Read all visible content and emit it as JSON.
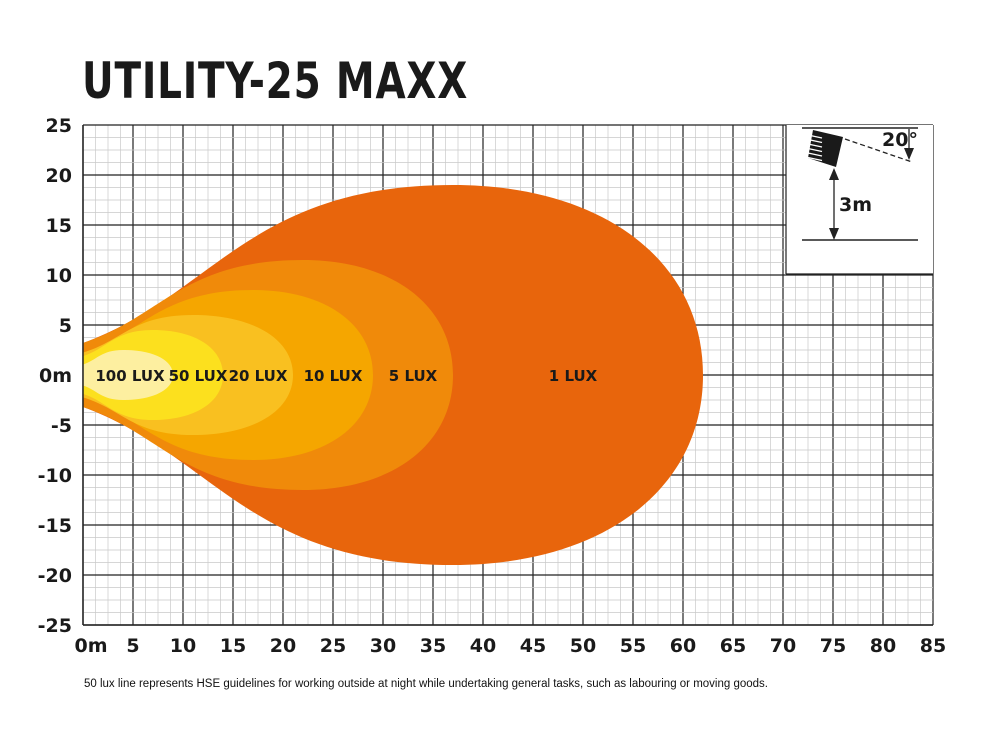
{
  "title": "UTILITY-25 MAXX",
  "footnote": "50 lux line represents HSE guidelines for working outside at night while undertaking general tasks, such as labouring or moving goods.",
  "chart_data": {
    "type": "area",
    "title": "UTILITY-25 MAXX",
    "xlim": [
      0,
      85
    ],
    "ylim": [
      -25,
      25
    ],
    "x_ticks": [
      "0m",
      "5",
      "10",
      "15",
      "20",
      "25",
      "30",
      "35",
      "40",
      "45",
      "50",
      "55",
      "60",
      "65",
      "70",
      "75",
      "80",
      "85"
    ],
    "y_ticks": [
      "25",
      "20",
      "15",
      "10",
      "5",
      "0m",
      "-5",
      "-10",
      "-15",
      "-20",
      "-25"
    ],
    "grid": true,
    "series": [
      {
        "name": "1 LUX",
        "color": "#E8650C",
        "reach": 62,
        "half_width": 19,
        "widest_at": 37
      },
      {
        "name": "5 LUX",
        "color": "#F08A0A",
        "reach": 37,
        "half_width": 11.5,
        "widest_at": 22
      },
      {
        "name": "10 LUX",
        "color": "#F5A600",
        "reach": 29,
        "half_width": 8.5,
        "widest_at": 17
      },
      {
        "name": "20 LUX",
        "color": "#F9C020",
        "reach": 21,
        "half_width": 6,
        "widest_at": 11
      },
      {
        "name": "50 LUX",
        "color": "#FCE01E",
        "reach": 14,
        "half_width": 4.5,
        "widest_at": 7
      },
      {
        "name": "100 LUX",
        "color": "#FDEFA0",
        "reach": 9,
        "half_width": 2.5,
        "widest_at": 4
      }
    ],
    "label_positions_x": [
      49,
      33,
      25,
      17.5,
      11.5,
      4.7
    ],
    "inset": {
      "mount_height": "3m",
      "tilt_angle": "20°"
    }
  }
}
